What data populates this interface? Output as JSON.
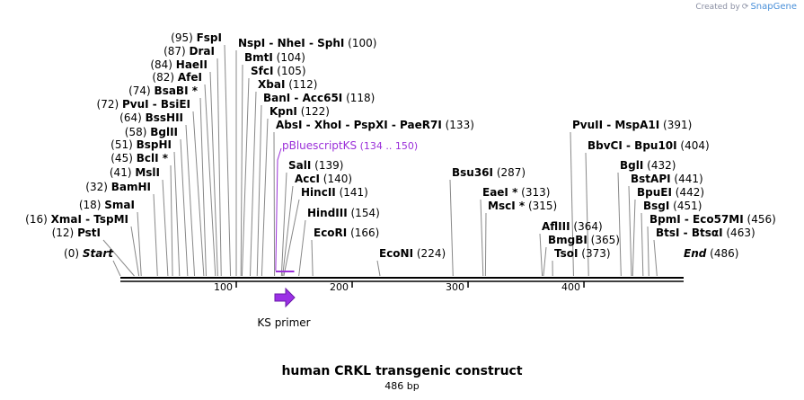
{
  "credit": {
    "prefix": "Created by",
    "brand": "SnapGene"
  },
  "title": "human CRKL transgenic construct",
  "length_label": "486 bp",
  "total_bp": 486,
  "colors": {
    "feature": "#9b30d9",
    "line": "#000000",
    "leader": "#888888"
  },
  "start": {
    "name": "Start",
    "pos": 0
  },
  "end": {
    "name": "End",
    "pos": 486
  },
  "ticks": [
    {
      "pos": 100,
      "label": "100"
    },
    {
      "pos": 200,
      "label": "200"
    },
    {
      "pos": 300,
      "label": "300"
    },
    {
      "pos": 400,
      "label": "400"
    }
  ],
  "sites": [
    {
      "names": "PstI",
      "pos": 12,
      "label": "(12)"
    },
    {
      "names": "XmaI - TspMI",
      "pos": 16,
      "label": "(16)"
    },
    {
      "names": "SmaI",
      "pos": 18,
      "label": "(18)"
    },
    {
      "names": "BamHI",
      "pos": 32,
      "label": "(32)"
    },
    {
      "names": "MslI",
      "pos": 41,
      "label": "(41)"
    },
    {
      "names": "BclI *",
      "pos": 45,
      "label": "(45)"
    },
    {
      "names": "BspHI",
      "pos": 51,
      "label": "(51)"
    },
    {
      "names": "BglII",
      "pos": 58,
      "label": "(58)"
    },
    {
      "names": "BssHII",
      "pos": 64,
      "label": "(64)"
    },
    {
      "names": "PvuI - BsiEI",
      "pos": 72,
      "label": "(72)"
    },
    {
      "names": "BsaBI *",
      "pos": 74,
      "label": "(74)"
    },
    {
      "names": "AfeI",
      "pos": 82,
      "label": "(82)"
    },
    {
      "names": "HaeII",
      "pos": 84,
      "label": "(84)"
    },
    {
      "names": "DraI",
      "pos": 87,
      "label": "(87)"
    },
    {
      "names": "FspI",
      "pos": 95,
      "label": "(95)"
    },
    {
      "names": "NspI - NheI - SphI",
      "pos": 100,
      "label": "(100)"
    },
    {
      "names": "BmtI",
      "pos": 104,
      "label": "(104)"
    },
    {
      "names": "SfcI",
      "pos": 105,
      "label": "(105)"
    },
    {
      "names": "XbaI",
      "pos": 112,
      "label": "(112)"
    },
    {
      "names": "BanI - Acc65I",
      "pos": 118,
      "label": "(118)"
    },
    {
      "names": "KpnI",
      "pos": 122,
      "label": "(122)"
    },
    {
      "names": "AbsI - XhoI - PspXI - PaeR7I",
      "pos": 133,
      "label": "(133)"
    },
    {
      "names": "SalI",
      "pos": 139,
      "label": "(139)"
    },
    {
      "names": "AccI",
      "pos": 140,
      "label": "(140)"
    },
    {
      "names": "HincII",
      "pos": 141,
      "label": "(141)"
    },
    {
      "names": "HindIII",
      "pos": 154,
      "label": "(154)"
    },
    {
      "names": "EcoRI",
      "pos": 166,
      "label": "(166)"
    },
    {
      "names": "EcoNI",
      "pos": 224,
      "label": "(224)"
    },
    {
      "names": "Bsu36I",
      "pos": 287,
      "label": "(287)"
    },
    {
      "names": "EaeI *",
      "pos": 313,
      "label": "(313)"
    },
    {
      "names": "MscI *",
      "pos": 315,
      "label": "(315)"
    },
    {
      "names": "AflIII",
      "pos": 364,
      "label": "(364)"
    },
    {
      "names": "BmgBI",
      "pos": 365,
      "label": "(365)"
    },
    {
      "names": "TsoI",
      "pos": 373,
      "label": "(373)"
    },
    {
      "names": "PvuII - MspA1I",
      "pos": 391,
      "label": "(391)"
    },
    {
      "names": "BbvCI - Bpu10I",
      "pos": 404,
      "label": "(404)"
    },
    {
      "names": "BglI",
      "pos": 432,
      "label": "(432)"
    },
    {
      "names": "BstAPI",
      "pos": 441,
      "label": "(441)"
    },
    {
      "names": "BpuEI",
      "pos": 442,
      "label": "(442)"
    },
    {
      "names": "BsgI",
      "pos": 451,
      "label": "(451)"
    },
    {
      "names": "BpmI - Eco57MI",
      "pos": 456,
      "label": "(456)"
    },
    {
      "names": "BtsI - BtsαI",
      "pos": 463,
      "label": "(463)"
    }
  ],
  "feature": {
    "name": "pBluescriptKS",
    "range": "(134 .. 150)",
    "start": 134,
    "end": 150
  },
  "primer": {
    "name": "KS primer"
  }
}
